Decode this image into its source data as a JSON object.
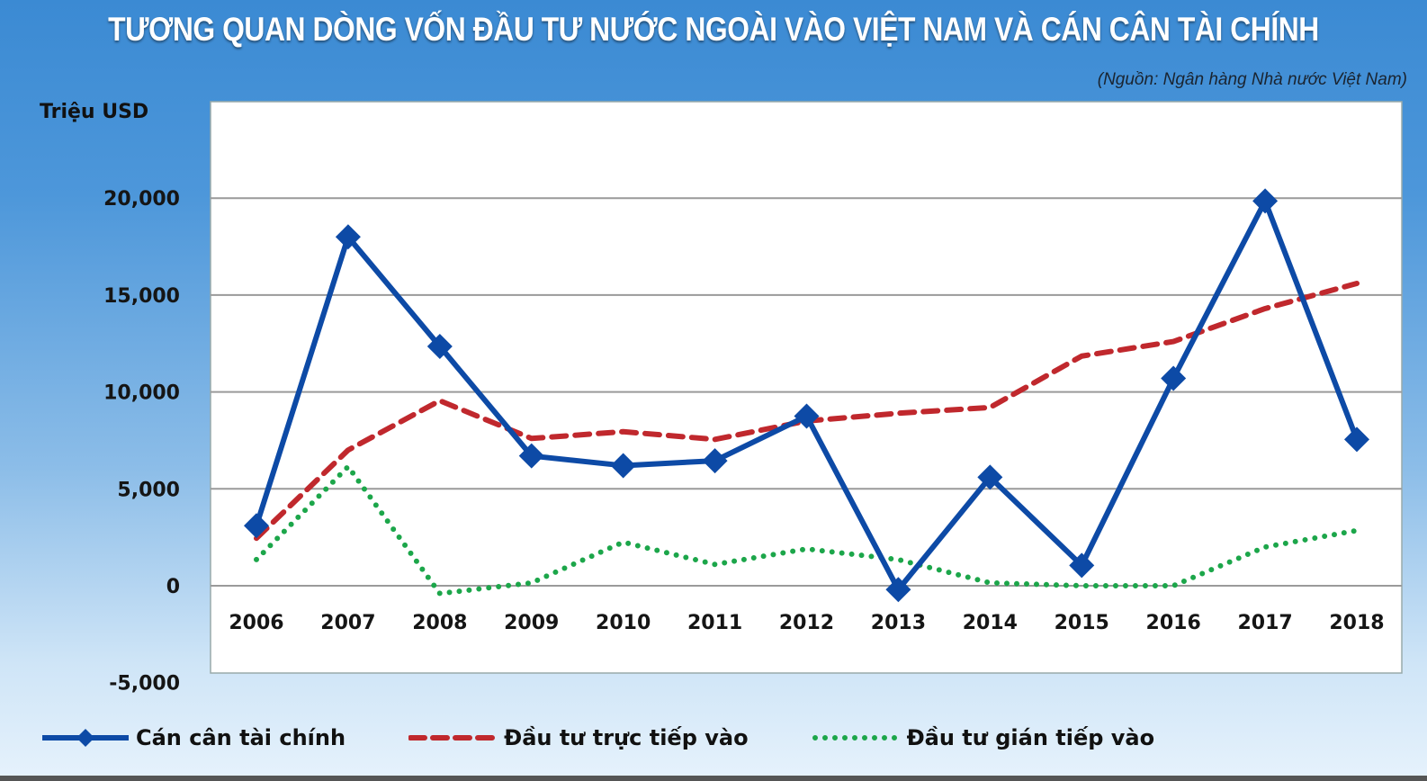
{
  "title": "TƯƠNG QUAN DÒNG VỐN ĐẦU TƯ NƯỚC NGOÀI VÀO VIỆT NAM VÀ CÁN CÂN TÀI CHÍNH",
  "source": "(Nguồn: Ngân hàng Nhà nước Việt Nam)",
  "chart_data": {
    "type": "line",
    "title": "TƯƠNG QUAN DÒNG VỐN ĐẦU TƯ NƯỚC NGOÀI VÀO VIỆT NAM VÀ CÁN CÂN TÀI CHÍNH",
    "ylabel": "Triệu USD",
    "xlabel": "",
    "ylim": [
      -5000,
      20000
    ],
    "yticks": [
      "20,000",
      "15,000",
      "10,000",
      "5,000",
      "0",
      "-5,000"
    ],
    "ytick_values": [
      20000,
      15000,
      10000,
      5000,
      0,
      -5000
    ],
    "grid": true,
    "legend": "bottom",
    "categories": [
      "2006",
      "2007",
      "2008",
      "2009",
      "2010",
      "2011",
      "2012",
      "2013",
      "2014",
      "2015",
      "2016",
      "2017",
      "2018"
    ],
    "series": [
      {
        "name": "Cán cân tài chính",
        "color": "#0d4aa6",
        "style": "solid-diamond",
        "values": [
          3100,
          18000,
          12350,
          6700,
          6200,
          6450,
          8750,
          -200,
          5600,
          1050,
          10700,
          19850,
          7550
        ]
      },
      {
        "name": "Đầu tư trực tiếp vào",
        "color": "#c0282d",
        "style": "dashed",
        "values": [
          2450,
          7000,
          9550,
          7600,
          7950,
          7550,
          8500,
          8900,
          9200,
          11850,
          12600,
          14300,
          15600
        ]
      },
      {
        "name": "Đầu tư gián tiếp vào",
        "color": "#1ca64a",
        "style": "dotted",
        "values": [
          1350,
          6150,
          -400,
          150,
          2250,
          1100,
          1900,
          1350,
          150,
          0,
          0,
          2000,
          2850
        ]
      }
    ]
  }
}
